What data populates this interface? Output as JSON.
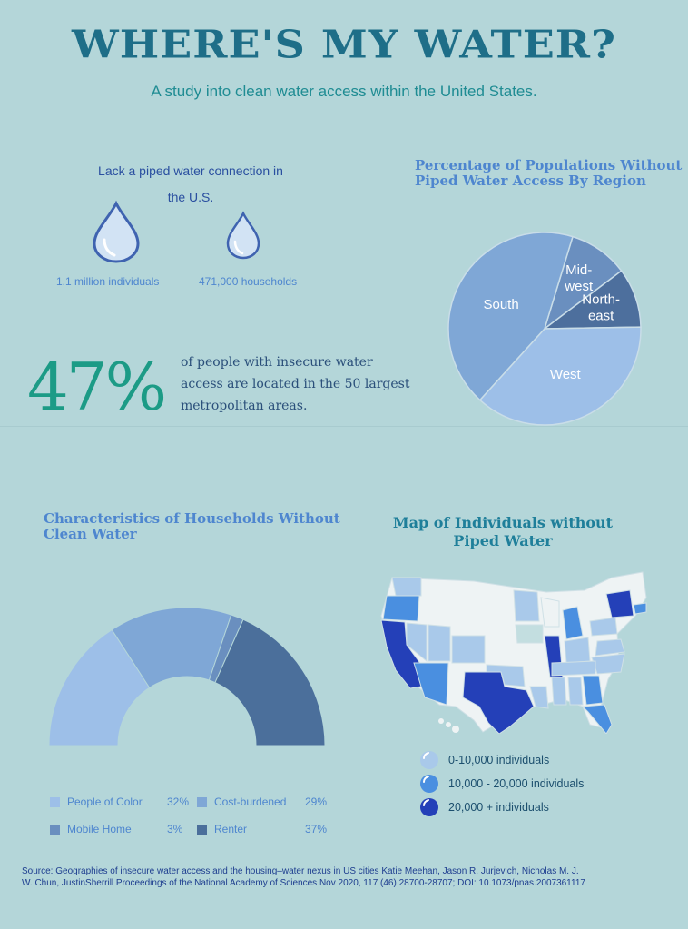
{
  "header": {
    "title": "WHERE'S MY WATER?",
    "subtitle": "A study into clean water access within the United States."
  },
  "lack_section": {
    "title_line1": "Lack a piped water connection in",
    "title_line2": "the U.S.",
    "individuals": "1.1 million individuals",
    "households": "471,000 households"
  },
  "stat": {
    "value": "47%",
    "text_line1": "of people with insecure water",
    "text_line2": "access are located in the 50 largest",
    "text_line3": "metropolitan areas."
  },
  "region_chart": {
    "title_line1": "Percentage of Populations Without",
    "title_line2": "Piped Water Access By Region"
  },
  "households_chart": {
    "title_line1": "Characteristics of Households Without",
    "title_line2": "Clean Water"
  },
  "map_section": {
    "title_line1": "Map of Individuals without",
    "title_line2": "Piped Water",
    "legend": [
      {
        "label": "0-10,000 individuals",
        "color": "#a9c9ea"
      },
      {
        "label": "10,000 - 20,000  individuals",
        "color": "#4a8fe0"
      },
      {
        "label": "20,000 + individuals",
        "color": "#2440b8"
      }
    ]
  },
  "colors": {
    "background": "#b4d6d9",
    "title": "#1e6e88",
    "accent_teal": "#1c9b86",
    "label_blue": "#4e86cf"
  },
  "icons": [
    "water-drop-icon"
  ],
  "footer": {
    "source_line1": "Source: Geographies of insecure water access and the housing–water nexus in US cities Katie Meehan, Jason R. Jurjevich, Nicholas M. J.",
    "source_line2": "W. Chun, JustinSherrill Proceedings of the National Academy of Sciences Nov 2020, 117 (46) 28700-28707; DOI: 10.1073/pnas.2007361117"
  },
  "chart_data": [
    {
      "type": "pie",
      "title": "Percentage of Populations Without Piped Water Access By Region",
      "categories": [
        "Midwest",
        "Northeast",
        "West",
        "South"
      ],
      "labels": [
        "Mid-west",
        "North-east",
        "West",
        "South"
      ],
      "values": [
        10,
        10,
        37,
        43
      ],
      "colors": [
        "#6a8fbf",
        "#4d6f9d",
        "#9dbfe8",
        "#7fa7d6"
      ]
    },
    {
      "type": "pie",
      "subtype": "half-donut",
      "title": "Characteristics of Households Without Clean Water",
      "categories": [
        "People of Color",
        "Cost-burdened",
        "Mobile Home",
        "Renter"
      ],
      "values": [
        32,
        29,
        3,
        37
      ],
      "value_labels": [
        "32%",
        "29%",
        "3%",
        "37%"
      ],
      "colors": [
        "#9dbfe8",
        "#7fa7d6",
        "#6a8fbf",
        "#4b6f9b"
      ]
    }
  ]
}
